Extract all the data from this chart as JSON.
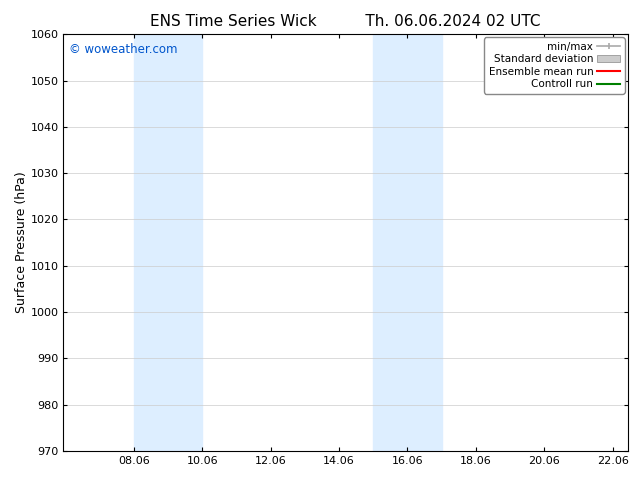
{
  "title_left": "ENS Time Series Wick",
  "title_right": "Th. 06.06.2024 02 UTC",
  "ylabel": "Surface Pressure (hPa)",
  "watermark": "© woweather.com",
  "watermark_color": "#0055cc",
  "ylim": [
    970,
    1060
  ],
  "yticks": [
    970,
    980,
    990,
    1000,
    1010,
    1020,
    1030,
    1040,
    1050,
    1060
  ],
  "xlim_start": 6.0,
  "xlim_end": 22.5,
  "xtick_labels": [
    "08.06",
    "10.06",
    "12.06",
    "14.06",
    "16.06",
    "18.06",
    "20.06",
    "22.06"
  ],
  "xtick_positions": [
    8.06,
    10.06,
    12.06,
    14.06,
    16.06,
    18.06,
    20.06,
    22.06
  ],
  "shaded_bands": [
    {
      "x_start": 8.06,
      "x_end": 10.06
    },
    {
      "x_start": 15.06,
      "x_end": 17.06
    }
  ],
  "shaded_color": "#ddeeff",
  "background_color": "#ffffff",
  "grid_color": "#cccccc",
  "legend_items": [
    {
      "label": "min/max",
      "color": "#aaaaaa",
      "style": "line_with_ticks"
    },
    {
      "label": "Standard deviation",
      "color": "#cccccc",
      "style": "filled_rect"
    },
    {
      "label": "Ensemble mean run",
      "color": "#ff0000",
      "style": "line"
    },
    {
      "label": "Controll run",
      "color": "#008000",
      "style": "line"
    }
  ],
  "title_fontsize": 11,
  "axis_label_fontsize": 9,
  "tick_fontsize": 8,
  "legend_fontsize": 7.5,
  "watermark_fontsize": 8.5
}
